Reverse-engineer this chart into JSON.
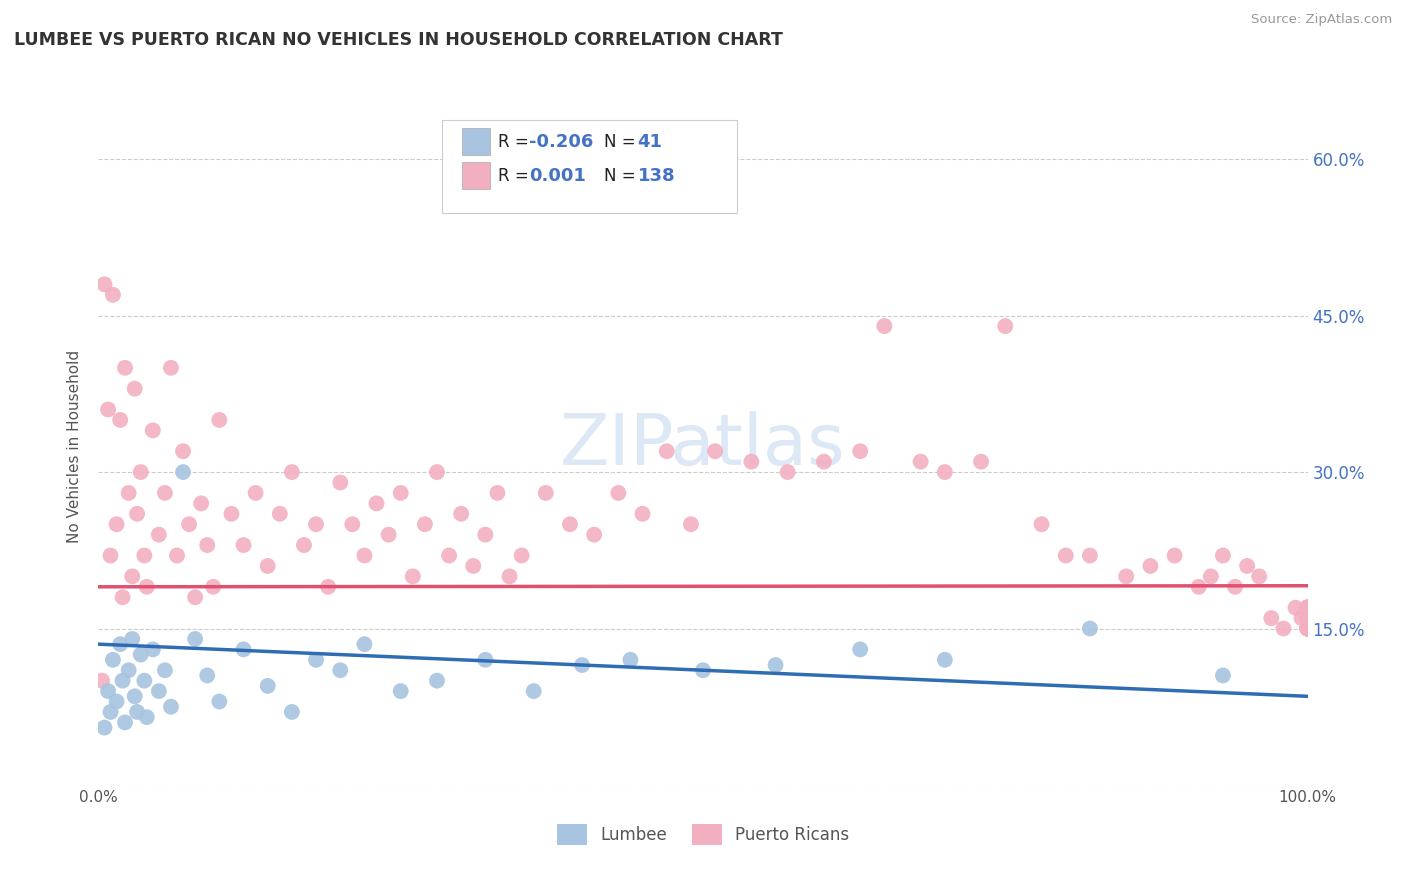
{
  "title": "LUMBEE VS PUERTO RICAN NO VEHICLES IN HOUSEHOLD CORRELATION CHART",
  "source": "Source: ZipAtlas.com",
  "ylabel": "No Vehicles in Household",
  "xlim": [
    0,
    100
  ],
  "ylim": [
    0,
    65
  ],
  "x_ticks": [
    0,
    20,
    40,
    60,
    80,
    100
  ],
  "x_tick_labels": [
    "0.0%",
    "",
    "",
    "",
    "",
    "100.0%"
  ],
  "y_ticks": [
    0,
    15,
    30,
    45,
    60
  ],
  "right_y_tick_labels": [
    "15.0%",
    "30.0%",
    "45.0%",
    "60.0%"
  ],
  "legend_r_lumbee": "-0.206",
  "legend_n_lumbee": "41",
  "legend_r_puerto": "0.001",
  "legend_n_puerto": "138",
  "color_lumbee": "#a8c4e0",
  "color_puerto": "#f2afc0",
  "color_lumbee_line": "#2e6db4",
  "color_puerto_line": "#e05070",
  "color_text_blue": "#4472c4",
  "color_grid": "#cccccc",
  "watermark_color": "#dce8f5",
  "lumbee_trend_x0": 0,
  "lumbee_trend_y0": 13.5,
  "lumbee_trend_x1": 100,
  "lumbee_trend_y1": 8.5,
  "puerto_trend_x0": 0,
  "puerto_trend_y0": 19.0,
  "puerto_trend_x1": 100,
  "puerto_trend_y1": 19.1,
  "lumbee_x": [
    0.5,
    0.8,
    1.0,
    1.2,
    1.5,
    1.8,
    2.0,
    2.2,
    2.5,
    2.8,
    3.0,
    3.2,
    3.5,
    3.8,
    4.0,
    4.5,
    5.0,
    5.5,
    6.0,
    7.0,
    8.0,
    9.0,
    10.0,
    12.0,
    14.0,
    16.0,
    18.0,
    20.0,
    22.0,
    25.0,
    28.0,
    32.0,
    36.0,
    40.0,
    44.0,
    50.0,
    56.0,
    63.0,
    70.0,
    82.0,
    93.0
  ],
  "lumbee_y": [
    5.5,
    9.0,
    7.0,
    12.0,
    8.0,
    13.5,
    10.0,
    6.0,
    11.0,
    14.0,
    8.5,
    7.0,
    12.5,
    10.0,
    6.5,
    13.0,
    9.0,
    11.0,
    7.5,
    30.0,
    14.0,
    10.5,
    8.0,
    13.0,
    9.5,
    7.0,
    12.0,
    11.0,
    13.5,
    9.0,
    10.0,
    12.0,
    9.0,
    11.5,
    12.0,
    11.0,
    11.5,
    13.0,
    12.0,
    15.0,
    10.5
  ],
  "puerto_x": [
    0.3,
    0.5,
    0.8,
    1.0,
    1.2,
    1.5,
    1.8,
    2.0,
    2.2,
    2.5,
    2.8,
    3.0,
    3.2,
    3.5,
    3.8,
    4.0,
    4.5,
    5.0,
    5.5,
    6.0,
    6.5,
    7.0,
    7.5,
    8.0,
    8.5,
    9.0,
    9.5,
    10.0,
    11.0,
    12.0,
    13.0,
    14.0,
    15.0,
    16.0,
    17.0,
    18.0,
    19.0,
    20.0,
    21.0,
    22.0,
    23.0,
    24.0,
    25.0,
    26.0,
    27.0,
    28.0,
    29.0,
    30.0,
    31.0,
    32.0,
    33.0,
    34.0,
    35.0,
    37.0,
    39.0,
    41.0,
    43.0,
    45.0,
    47.0,
    49.0,
    51.0,
    54.0,
    57.0,
    60.0,
    63.0,
    65.0,
    68.0,
    70.0,
    73.0,
    75.0,
    78.0,
    80.0,
    82.0,
    85.0,
    87.0,
    89.0,
    91.0,
    92.0,
    93.0,
    94.0,
    95.0,
    96.0,
    97.0,
    98.0,
    99.0,
    99.5,
    100.0,
    100.0,
    100.0,
    100.0,
    100.0,
    100.0,
    100.0,
    100.0,
    100.0,
    100.0,
    100.0,
    100.0,
    100.0,
    100.0,
    100.0,
    100.0,
    100.0,
    100.0,
    100.0,
    100.0,
    100.0,
    100.0,
    100.0,
    100.0,
    100.0,
    100.0,
    100.0,
    100.0,
    100.0,
    100.0,
    100.0,
    100.0,
    100.0,
    100.0,
    100.0,
    100.0,
    100.0,
    100.0,
    100.0,
    100.0,
    100.0,
    100.0,
    100.0,
    100.0,
    100.0,
    100.0,
    100.0,
    100.0,
    100.0,
    100.0
  ],
  "puerto_y": [
    10.0,
    48.0,
    36.0,
    22.0,
    47.0,
    25.0,
    35.0,
    18.0,
    40.0,
    28.0,
    20.0,
    38.0,
    26.0,
    30.0,
    22.0,
    19.0,
    34.0,
    24.0,
    28.0,
    40.0,
    22.0,
    32.0,
    25.0,
    18.0,
    27.0,
    23.0,
    19.0,
    35.0,
    26.0,
    23.0,
    28.0,
    21.0,
    26.0,
    30.0,
    23.0,
    25.0,
    19.0,
    29.0,
    25.0,
    22.0,
    27.0,
    24.0,
    28.0,
    20.0,
    25.0,
    30.0,
    22.0,
    26.0,
    21.0,
    24.0,
    28.0,
    20.0,
    22.0,
    28.0,
    25.0,
    24.0,
    28.0,
    26.0,
    32.0,
    25.0,
    32.0,
    31.0,
    30.0,
    31.0,
    32.0,
    44.0,
    31.0,
    30.0,
    31.0,
    44.0,
    25.0,
    22.0,
    22.0,
    20.0,
    21.0,
    22.0,
    19.0,
    20.0,
    22.0,
    19.0,
    21.0,
    20.0,
    16.0,
    15.0,
    17.0,
    16.0,
    17.0,
    16.0,
    15.0,
    16.0,
    17.0,
    15.0,
    17.0,
    16.0,
    15.0,
    17.0,
    16.0,
    17.0,
    15.0,
    16.0,
    17.0,
    15.0,
    16.0,
    15.0,
    17.0,
    16.0,
    15.0,
    16.0,
    17.0,
    15.0,
    16.0,
    17.0,
    15.0,
    16.0,
    17.0,
    15.0,
    16.0,
    15.0,
    17.0,
    16.0,
    15.0,
    17.0,
    16.0,
    15.0,
    16.0,
    17.0,
    15.0,
    16.0,
    17.0,
    15.0,
    16.0,
    17.0,
    15.0,
    16.0,
    17.0,
    15.0
  ]
}
